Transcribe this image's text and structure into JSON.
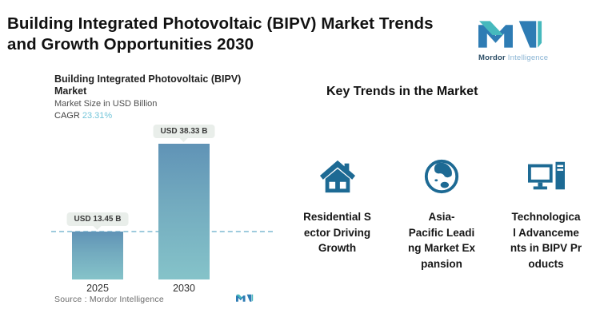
{
  "header": {
    "title": "Building Integrated Photovoltaic (BIPV) Market Trends\nand Growth Opportunities 2030",
    "brand_bold": "Mordor",
    "brand_light": "Intelligence"
  },
  "chart": {
    "title": "Building Integrated Photovoltaic (BIPV)\nMarket",
    "subtitle": "Market Size in USD Billion",
    "cagr_label": "CAGR ",
    "cagr_value": "23.31%",
    "source_label": "Source :  Mordor Intelligence"
  },
  "chart_data": {
    "type": "bar",
    "title": "Building Integrated Photovoltaic (BIPV) Market",
    "ylabel": "Market Size in USD Billion",
    "cagr": "23.31%",
    "categories": [
      "2025",
      "2030"
    ],
    "values": [
      13.45,
      38.33
    ],
    "value_labels": [
      "USD 13.45 B",
      "USD 38.33 B"
    ],
    "ylim": [
      0,
      38.33
    ],
    "grid": false,
    "reference_line": {
      "at_value": 13.45,
      "style": "dashed"
    }
  },
  "trends": {
    "heading": "Key Trends in the Market",
    "items": [
      {
        "icon": "house-icon",
        "label": "Residential S\nector Driving\nGrowth"
      },
      {
        "icon": "globe-icon",
        "label": "Asia-\nPacific Leadi\nng Market Ex\npansion"
      },
      {
        "icon": "computer-icon",
        "label": "Technologica\nl Advanceme\nnts in BIPV Pr\noducts"
      }
    ]
  },
  "colors": {
    "bar_top": "#6093b6",
    "bar_bottom": "#85c3c9",
    "dash_line": "#9ecbdd",
    "pill_bg": "#e9eeea",
    "cagr_accent": "#72c5d9",
    "icon": "#1d6a94",
    "logo_blue": "#2e7cb4",
    "logo_teal": "#46b9bd",
    "text_dark": "#111111"
  }
}
